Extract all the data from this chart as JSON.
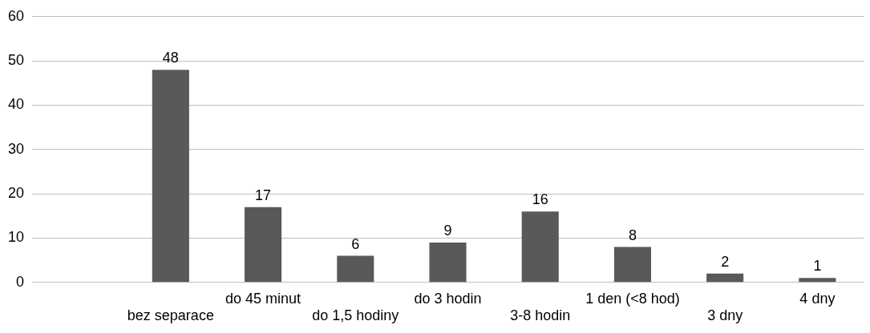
{
  "chart_data": {
    "type": "bar",
    "categories": [
      null,
      "bez separace",
      "do 45 minut",
      "do 1,5 hodiny",
      "do 3 hodin",
      "3-8 hodin",
      "1 den (<8 hod)",
      "3 dny",
      "4 dny"
    ],
    "values": [
      null,
      48,
      17,
      6,
      9,
      16,
      8,
      2,
      1
    ],
    "color": "#595959",
    "ylim": [
      0,
      60
    ],
    "yticks": [
      0,
      10,
      20,
      30,
      40,
      50,
      60
    ],
    "grid": "y",
    "data_labels": true,
    "legend": false
  }
}
